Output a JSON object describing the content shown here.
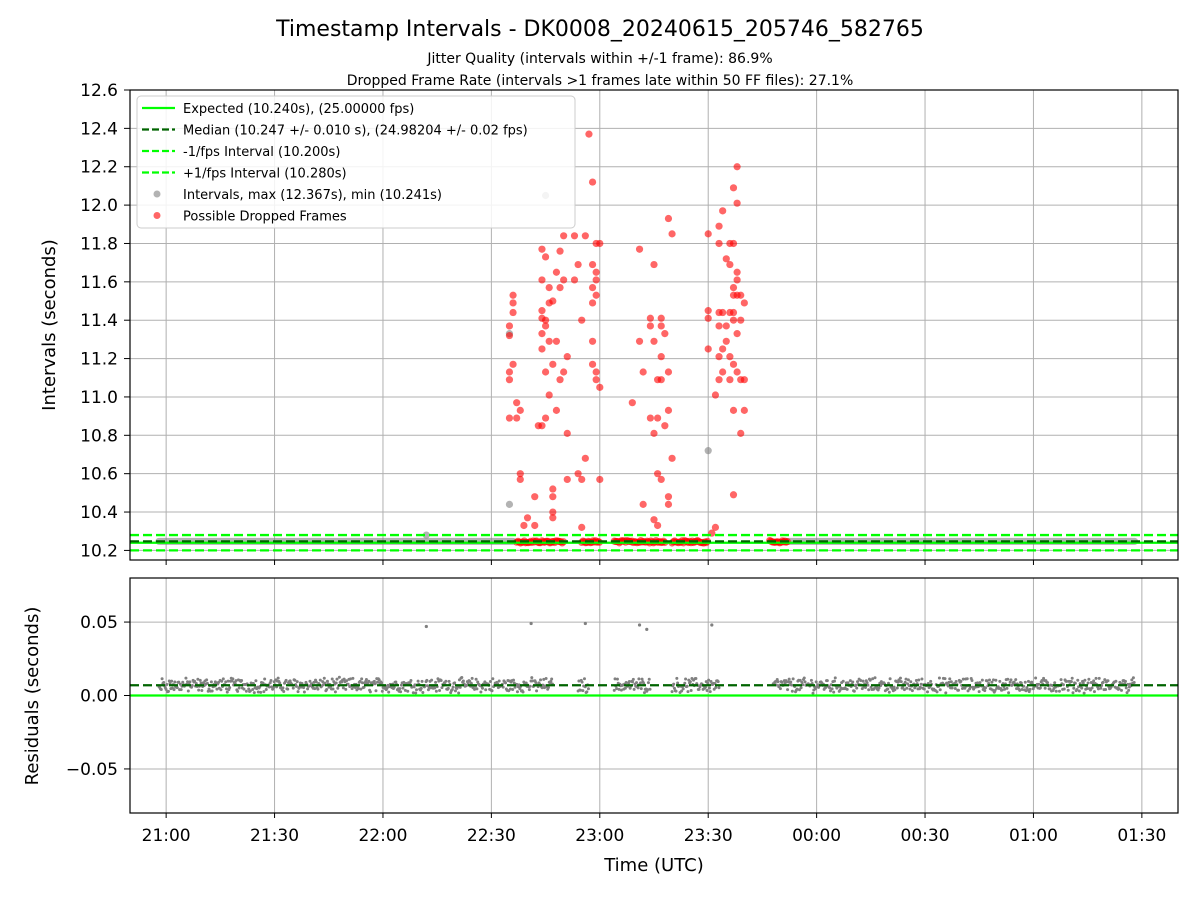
{
  "chart_data": [
    {
      "type": "scatter",
      "panel": "intervals",
      "title": "Timestamp Intervals - DK0008_20240615_205746_582765",
      "subtitle_lines": [
        "Jitter Quality (intervals within +/-1 frame): 86.9%",
        "Dropped Frame Rate (intervals >1 frames late within 50 FF files): 27.1%"
      ],
      "ylabel": "Intervals (seconds)",
      "xlabel": "",
      "x_axis": "time",
      "xlim": [
        "20:50",
        "01:40"
      ],
      "ylim": [
        10.15,
        12.6
      ],
      "yticks": [
        10.2,
        10.4,
        10.6,
        10.8,
        11.0,
        11.2,
        11.4,
        11.6,
        11.8,
        12.0,
        12.2,
        12.4,
        12.6
      ],
      "ytick_labels": [
        "10.2",
        "10.4",
        "10.6",
        "10.8",
        "11.0",
        "11.2",
        "11.4",
        "11.6",
        "11.8",
        "12.0",
        "12.2",
        "12.4",
        "12.6"
      ],
      "grid": true,
      "legend_position": "top-left",
      "reference_lines": [
        {
          "name": "Expected (10.240s), (25.00000 fps)",
          "y": 10.24,
          "color": "#00ff00",
          "style": "solid"
        },
        {
          "name": "Median (10.247 +/- 0.010 s), (24.98204 +/- 0.02 fps)",
          "y": 10.247,
          "color": "#006400",
          "style": "dashed"
        },
        {
          "name": "-1/fps Interval (10.200s)",
          "y": 10.2,
          "color": "#00ff00",
          "style": "dashed"
        },
        {
          "name": "+1/fps Interval (10.280s)",
          "y": 10.28,
          "color": "#00ff00",
          "style": "dashed"
        }
      ],
      "series": [
        {
          "name": "Intervals, max (12.367s), min (10.241s)",
          "color": "#808080",
          "baseline_segments": [
            {
              "start": "20:58",
              "end": "22:36",
              "y": 10.247
            },
            {
              "start": "23:51",
              "end": "01:28",
              "y": 10.247
            }
          ],
          "points": [
            {
              "x": "22:12",
              "y": 10.28
            },
            {
              "x": "22:35",
              "y": 10.44
            },
            {
              "x": "22:35",
              "y": 11.33
            },
            {
              "x": "22:45",
              "y": 12.05
            },
            {
              "x": "23:30",
              "y": 10.72
            }
          ]
        },
        {
          "name": "Possible Dropped Frames",
          "color": "#ff0000",
          "baseline_clusters": [
            {
              "start": "22:37",
              "end": "22:50",
              "y": 10.245
            },
            {
              "start": "22:55",
              "end": "23:00",
              "y": 10.245
            },
            {
              "start": "23:04",
              "end": "23:18",
              "y": 10.245
            },
            {
              "start": "23:20",
              "end": "23:30",
              "y": 10.245
            },
            {
              "start": "23:47",
              "end": "23:52",
              "y": 10.245
            }
          ],
          "points": [
            {
              "x": "22:36",
              "y": 11.53
            },
            {
              "x": "22:36",
              "y": 11.49
            },
            {
              "x": "22:36",
              "y": 11.44
            },
            {
              "x": "22:35",
              "y": 11.37
            },
            {
              "x": "22:35",
              "y": 11.32
            },
            {
              "x": "22:36",
              "y": 11.17
            },
            {
              "x": "22:35",
              "y": 11.13
            },
            {
              "x": "22:35",
              "y": 11.09
            },
            {
              "x": "22:37",
              "y": 10.97
            },
            {
              "x": "22:38",
              "y": 10.93
            },
            {
              "x": "22:35",
              "y": 10.89
            },
            {
              "x": "22:37",
              "y": 10.89
            },
            {
              "x": "22:38",
              "y": 10.6
            },
            {
              "x": "22:38",
              "y": 10.57
            },
            {
              "x": "22:40",
              "y": 10.37
            },
            {
              "x": "22:39",
              "y": 10.33
            },
            {
              "x": "22:45",
              "y": 11.4
            },
            {
              "x": "22:47",
              "y": 11.5
            },
            {
              "x": "22:44",
              "y": 11.77
            },
            {
              "x": "22:49",
              "y": 11.76
            },
            {
              "x": "22:45",
              "y": 11.73
            },
            {
              "x": "22:48",
              "y": 11.65
            },
            {
              "x": "22:44",
              "y": 11.61
            },
            {
              "x": "22:46",
              "y": 11.57
            },
            {
              "x": "22:46",
              "y": 11.49
            },
            {
              "x": "22:44",
              "y": 11.45
            },
            {
              "x": "22:44",
              "y": 11.41
            },
            {
              "x": "22:45",
              "y": 11.37
            },
            {
              "x": "22:44",
              "y": 11.33
            },
            {
              "x": "22:46",
              "y": 11.29
            },
            {
              "x": "22:44",
              "y": 11.25
            },
            {
              "x": "22:47",
              "y": 11.17
            },
            {
              "x": "22:45",
              "y": 11.13
            },
            {
              "x": "22:49",
              "y": 11.09
            },
            {
              "x": "22:46",
              "y": 11.01
            },
            {
              "x": "22:48",
              "y": 10.93
            },
            {
              "x": "22:45",
              "y": 10.89
            },
            {
              "x": "22:43",
              "y": 10.85
            },
            {
              "x": "22:44",
              "y": 10.85
            },
            {
              "x": "22:51",
              "y": 10.81
            },
            {
              "x": "22:47",
              "y": 10.52
            },
            {
              "x": "22:47",
              "y": 10.48
            },
            {
              "x": "22:42",
              "y": 10.48
            },
            {
              "x": "22:47",
              "y": 10.4
            },
            {
              "x": "22:47",
              "y": 10.37
            },
            {
              "x": "22:42",
              "y": 10.33
            },
            {
              "x": "22:50",
              "y": 11.84
            },
            {
              "x": "22:50",
              "y": 11.61
            },
            {
              "x": "22:49",
              "y": 11.57
            },
            {
              "x": "22:48",
              "y": 11.29
            },
            {
              "x": "22:51",
              "y": 11.21
            },
            {
              "x": "22:50",
              "y": 11.13
            },
            {
              "x": "22:51",
              "y": 10.57
            },
            {
              "x": "22:53",
              "y": 11.84
            },
            {
              "x": "22:54",
              "y": 11.69
            },
            {
              "x": "22:53",
              "y": 11.61
            },
            {
              "x": "22:55",
              "y": 11.4
            },
            {
              "x": "22:56",
              "y": 11.84
            },
            {
              "x": "22:57",
              "y": 12.37
            },
            {
              "x": "22:58",
              "y": 12.12
            },
            {
              "x": "22:59",
              "y": 11.8
            },
            {
              "x": "22:58",
              "y": 11.69
            },
            {
              "x": "22:59",
              "y": 11.65
            },
            {
              "x": "22:59",
              "y": 11.61
            },
            {
              "x": "22:58",
              "y": 11.57
            },
            {
              "x": "22:59",
              "y": 11.53
            },
            {
              "x": "22:58",
              "y": 11.49
            },
            {
              "x": "22:58",
              "y": 11.29
            },
            {
              "x": "22:58",
              "y": 11.17
            },
            {
              "x": "22:59",
              "y": 11.13
            },
            {
              "x": "22:59",
              "y": 11.09
            },
            {
              "x": "23:00",
              "y": 11.05
            },
            {
              "x": "22:56",
              "y": 10.68
            },
            {
              "x": "22:54",
              "y": 10.6
            },
            {
              "x": "23:00",
              "y": 10.57
            },
            {
              "x": "22:55",
              "y": 10.57
            },
            {
              "x": "22:55",
              "y": 10.32
            },
            {
              "x": "23:00",
              "y": 11.8
            },
            {
              "x": "23:11",
              "y": 11.77
            },
            {
              "x": "23:15",
              "y": 11.69
            },
            {
              "x": "23:14",
              "y": 11.41
            },
            {
              "x": "23:11",
              "y": 11.29
            },
            {
              "x": "23:14",
              "y": 11.37
            },
            {
              "x": "23:18",
              "y": 11.33
            },
            {
              "x": "23:17",
              "y": 11.41
            },
            {
              "x": "23:17",
              "y": 11.37
            },
            {
              "x": "23:15",
              "y": 11.29
            },
            {
              "x": "23:17",
              "y": 11.21
            },
            {
              "x": "23:19",
              "y": 11.13
            },
            {
              "x": "23:16",
              "y": 11.09
            },
            {
              "x": "23:17",
              "y": 11.09
            },
            {
              "x": "23:12",
              "y": 11.13
            },
            {
              "x": "23:09",
              "y": 10.97
            },
            {
              "x": "23:14",
              "y": 10.89
            },
            {
              "x": "23:16",
              "y": 10.89
            },
            {
              "x": "23:15",
              "y": 10.81
            },
            {
              "x": "23:19",
              "y": 10.93
            },
            {
              "x": "23:18",
              "y": 10.85
            },
            {
              "x": "23:20",
              "y": 10.68
            },
            {
              "x": "23:16",
              "y": 10.6
            },
            {
              "x": "23:17",
              "y": 10.57
            },
            {
              "x": "23:19",
              "y": 10.48
            },
            {
              "x": "23:19",
              "y": 10.44
            },
            {
              "x": "23:12",
              "y": 10.44
            },
            {
              "x": "23:19",
              "y": 11.93
            },
            {
              "x": "23:20",
              "y": 11.85
            },
            {
              "x": "23:15",
              "y": 10.36
            },
            {
              "x": "23:16",
              "y": 10.33
            },
            {
              "x": "23:30",
              "y": 11.85
            },
            {
              "x": "23:33",
              "y": 11.89
            },
            {
              "x": "23:34",
              "y": 11.97
            },
            {
              "x": "23:33",
              "y": 11.8
            },
            {
              "x": "23:36",
              "y": 11.8
            },
            {
              "x": "23:37",
              "y": 11.8
            },
            {
              "x": "23:38",
              "y": 12.01
            },
            {
              "x": "23:37",
              "y": 12.09
            },
            {
              "x": "23:38",
              "y": 12.2
            },
            {
              "x": "23:35",
              "y": 11.72
            },
            {
              "x": "23:36",
              "y": 11.69
            },
            {
              "x": "23:38",
              "y": 11.65
            },
            {
              "x": "23:38",
              "y": 11.61
            },
            {
              "x": "23:37",
              "y": 11.57
            },
            {
              "x": "23:37",
              "y": 11.53
            },
            {
              "x": "23:38",
              "y": 11.53
            },
            {
              "x": "23:39",
              "y": 11.53
            },
            {
              "x": "23:40",
              "y": 11.49
            },
            {
              "x": "23:33",
              "y": 11.44
            },
            {
              "x": "23:34",
              "y": 11.44
            },
            {
              "x": "23:36",
              "y": 11.44
            },
            {
              "x": "23:37",
              "y": 11.44
            },
            {
              "x": "23:30",
              "y": 11.45
            },
            {
              "x": "23:30",
              "y": 11.41
            },
            {
              "x": "23:33",
              "y": 11.37
            },
            {
              "x": "23:35",
              "y": 11.37
            },
            {
              "x": "23:37",
              "y": 11.4
            },
            {
              "x": "23:39",
              "y": 11.4
            },
            {
              "x": "23:38",
              "y": 11.33
            },
            {
              "x": "23:35",
              "y": 11.29
            },
            {
              "x": "23:30",
              "y": 11.25
            },
            {
              "x": "23:34",
              "y": 11.25
            },
            {
              "x": "23:36",
              "y": 11.21
            },
            {
              "x": "23:33",
              "y": 11.21
            },
            {
              "x": "23:37",
              "y": 11.17
            },
            {
              "x": "23:34",
              "y": 11.13
            },
            {
              "x": "23:38",
              "y": 11.13
            },
            {
              "x": "23:33",
              "y": 11.09
            },
            {
              "x": "23:36",
              "y": 11.09
            },
            {
              "x": "23:39",
              "y": 11.09
            },
            {
              "x": "23:40",
              "y": 11.09
            },
            {
              "x": "23:32",
              "y": 11.01
            },
            {
              "x": "23:37",
              "y": 10.93
            },
            {
              "x": "23:40",
              "y": 10.93
            },
            {
              "x": "23:39",
              "y": 10.81
            },
            {
              "x": "23:37",
              "y": 10.49
            },
            {
              "x": "23:32",
              "y": 10.32
            },
            {
              "x": "23:31",
              "y": 10.29
            }
          ]
        }
      ]
    },
    {
      "type": "scatter",
      "panel": "residuals",
      "title": "",
      "xlabel": "Time (UTC)",
      "ylabel": "Residuals (seconds)",
      "x_axis": "time",
      "xlim": [
        "20:50",
        "01:40"
      ],
      "ylim": [
        -0.08,
        0.08
      ],
      "yticks": [
        -0.05,
        0.0,
        0.05
      ],
      "ytick_labels": [
        "−0.05",
        "0.00",
        "0.05"
      ],
      "xticks": [
        "21:00",
        "21:30",
        "22:00",
        "22:30",
        "23:00",
        "23:30",
        "00:00",
        "00:30",
        "01:00",
        "01:30"
      ],
      "grid": true,
      "reference_lines": [
        {
          "y": 0.0,
          "color": "#00ff00",
          "style": "solid"
        },
        {
          "y": 0.007,
          "color": "#006400",
          "style": "dashed"
        }
      ],
      "series": [
        {
          "color": "#808080",
          "noise_band_segments": [
            {
              "start": "20:58",
              "end": "22:37",
              "center": 0.007,
              "spread": 0.008
            },
            {
              "start": "22:37",
              "end": "22:47",
              "center": 0.007,
              "spread": 0.008
            },
            {
              "start": "22:54",
              "end": "22:57",
              "center": 0.007,
              "spread": 0.008
            },
            {
              "start": "23:04",
              "end": "23:14",
              "center": 0.007,
              "spread": 0.008
            },
            {
              "start": "23:20",
              "end": "23:33",
              "center": 0.007,
              "spread": 0.008
            },
            {
              "start": "23:48",
              "end": "01:28",
              "center": 0.007,
              "spread": 0.008
            }
          ],
          "points": [
            {
              "x": "22:12",
              "y": 0.047
            },
            {
              "x": "22:41",
              "y": 0.049
            },
            {
              "x": "22:56",
              "y": 0.049
            },
            {
              "x": "23:11",
              "y": 0.048
            },
            {
              "x": "23:13",
              "y": 0.045
            },
            {
              "x": "23:31",
              "y": 0.048
            }
          ]
        }
      ]
    }
  ],
  "legend": {
    "items": [
      {
        "label": "Expected (10.240s), (25.00000 fps)",
        "kind": "line",
        "color": "#00ff00",
        "dash": "solid"
      },
      {
        "label": "Median (10.247 +/- 0.010 s), (24.98204 +/- 0.02 fps)",
        "kind": "line",
        "color": "#006400",
        "dash": "dashed"
      },
      {
        "label": "-1/fps Interval (10.200s)",
        "kind": "line",
        "color": "#00ff00",
        "dash": "dashed"
      },
      {
        "label": "+1/fps Interval (10.280s)",
        "kind": "line",
        "color": "#00ff00",
        "dash": "dashed"
      },
      {
        "label": "Intervals, max (12.367s), min (10.241s)",
        "kind": "marker",
        "color": "#808080"
      },
      {
        "label": "Possible Dropped Frames",
        "kind": "marker",
        "color": "#ff0000"
      }
    ]
  }
}
